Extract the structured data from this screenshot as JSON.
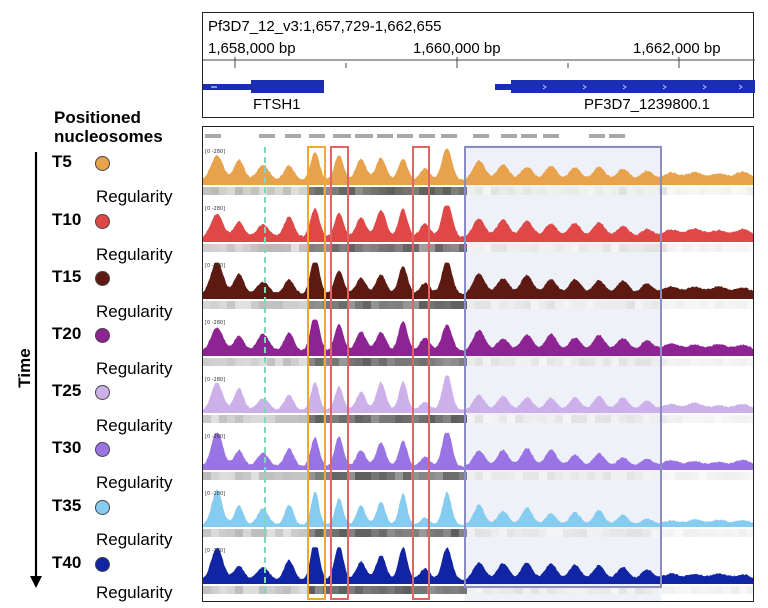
{
  "locus": {
    "coordinate": "Pf3D7_12_v3:1,657,729-1,662,655",
    "ticks": [
      "1,658,000 bp",
      "1,660,000 bp",
      "1,662,000 bp"
    ],
    "genes": [
      "FTSH1",
      "PF3D7_1239800.1"
    ]
  },
  "left": {
    "positioned_label": "Positioned\nnucleosomes",
    "time_label": "Time",
    "regularity_label": "Regularity"
  },
  "scale_label": "[0 -280]",
  "samples": [
    {
      "name": "T5",
      "color": "#E8A24C"
    },
    {
      "name": "T10",
      "color": "#E04848"
    },
    {
      "name": "T15",
      "color": "#5C1A12"
    },
    {
      "name": "T20",
      "color": "#8E2494"
    },
    {
      "name": "T25",
      "color": "#CDB0EA"
    },
    {
      "name": "T30",
      "color": "#9A74E4"
    },
    {
      "name": "T35",
      "color": "#86CCF0"
    },
    {
      "name": "T40",
      "color": "#1024A4"
    }
  ],
  "colors": {
    "gene": "#1a2db3",
    "posnuc": "#a8a8a8",
    "box_orange": "#F0A830",
    "box_red": "#E06464",
    "box_blue": "#8C8CC4",
    "dashed_line": "#7FD6B8"
  }
}
